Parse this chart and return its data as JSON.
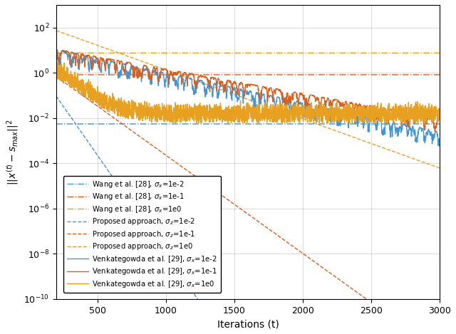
{
  "xlim": [
    200,
    3000
  ],
  "ylim": [
    1e-10,
    1000.0
  ],
  "xlabel": "Iterations (t)",
  "n_iter": 3000,
  "seed": 42,
  "legend_entries": [
    "Proposed approach, $\\sigma_z$=1e-2",
    "Proposed approach, $\\sigma_z$=1e-1",
    "Proposed approach, $\\sigma_z$=1e0",
    "Venkategowda et al. [29], $\\sigma_x$=1e-2",
    "Venkategowda et al. [29], $\\sigma_x$=1e-1",
    "Venkategowda et al. [29], $\\sigma_x$=1e0",
    "Wang et al. [28], $\\sigma_x$=1e-2",
    "Wang et al. [28], $\\sigma_x$=1e-1",
    "Wang et al. [28], $\\sigma_x$=1e0"
  ],
  "blue": "#4494D6",
  "red": "#D95F1E",
  "orange": "#E8A020",
  "wang_1e2_level": 0.0055,
  "wang_1e1_level": 0.82,
  "wang_1e0_level": 7.5
}
